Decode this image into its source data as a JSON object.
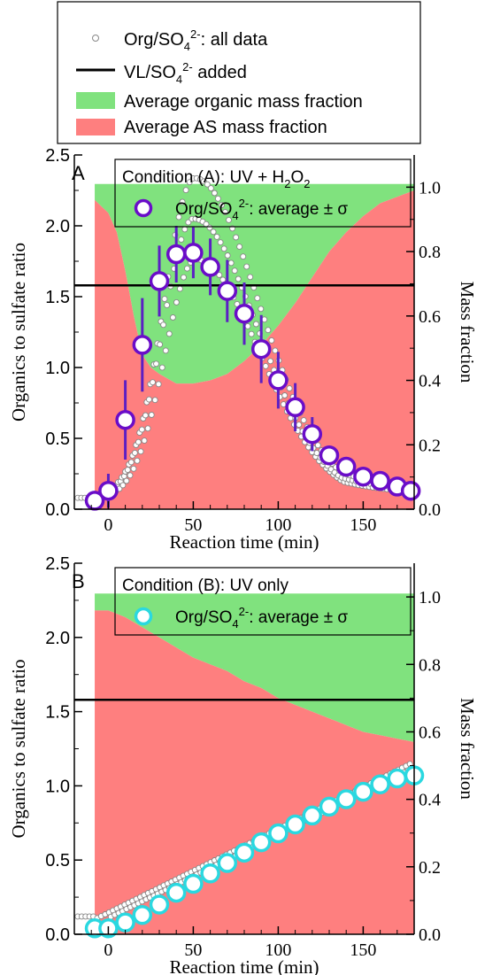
{
  "legend": {
    "all_data_label": "Org/SO",
    "all_data_sub": "4",
    "all_data_sup": "2-",
    "all_data_suffix": ": all data",
    "vl_label": "VL/SO",
    "vl_sub": "4",
    "vl_sup": "2-",
    "vl_suffix": " added",
    "org_frac_label": "Average organic mass fraction",
    "as_frac_label": "Average AS mass fraction"
  },
  "colors": {
    "organic_fill": "#80e27e",
    "as_fill": "#fe7f7f",
    "avg_a_edge": "#6a0dc8",
    "avg_a_err": "#5b1fc4",
    "avg_b_edge": "#2ad8e0",
    "all_data_edge": "#888888",
    "vl_line": "#000000"
  },
  "chart_data": [
    {
      "type": "scatter",
      "panel_letter": "A",
      "condition_text": "Condition (A): UV + H",
      "condition_sub": "2",
      "condition_mid": "O",
      "condition_sub2": "2",
      "avg_label": "Org/SO",
      "avg_sub": "4",
      "avg_sup": "2-",
      "avg_suffix": ": average ± σ",
      "xlabel": "Reaction time (min)",
      "ylabel": "Organics to sulfate ratio",
      "y2label": "Mass fraction",
      "xlim": [
        -20,
        180
      ],
      "ylim": [
        0,
        2.5
      ],
      "y2lim": [
        0,
        1.1
      ],
      "xticks": [
        "0",
        "50",
        "100",
        "150"
      ],
      "xtick_values": [
        0,
        50,
        100,
        150
      ],
      "yticks": [
        "0.0",
        "0.5",
        "1.0",
        "1.5",
        "2.0",
        "2.5"
      ],
      "ytick_values": [
        0,
        0.5,
        1.0,
        1.5,
        2.0,
        2.5
      ],
      "y2ticks": [
        "0.0",
        "0.2",
        "0.4",
        "0.6",
        "0.8",
        "1.0"
      ],
      "y2tick_values": [
        0,
        0.2,
        0.4,
        0.6,
        0.8,
        1.0
      ],
      "vl_ratio": 1.58,
      "fraction_x": [
        -8,
        0,
        5,
        10,
        15,
        20,
        25,
        30,
        40,
        50,
        60,
        70,
        80,
        90,
        100,
        110,
        120,
        130,
        140,
        150,
        160,
        170,
        180
      ],
      "as_fraction": [
        0.96,
        0.92,
        0.86,
        0.74,
        0.6,
        0.48,
        0.44,
        0.42,
        0.39,
        0.39,
        0.4,
        0.42,
        0.46,
        0.51,
        0.57,
        0.64,
        0.72,
        0.8,
        0.86,
        0.91,
        0.95,
        0.97,
        0.99
      ],
      "fraction_top": 1.01,
      "average": {
        "x": [
          -8,
          0,
          10,
          20,
          30,
          40,
          50,
          60,
          70,
          80,
          90,
          100,
          110,
          120,
          130,
          140,
          150,
          160,
          170,
          178
        ],
        "y": [
          0.06,
          0.13,
          0.63,
          1.16,
          1.61,
          1.8,
          1.81,
          1.71,
          1.54,
          1.38,
          1.13,
          0.91,
          0.72,
          0.53,
          0.38,
          0.3,
          0.23,
          0.2,
          0.16,
          0.13
        ],
        "err": [
          0.02,
          0.12,
          0.28,
          0.33,
          0.25,
          0.2,
          0.18,
          0.2,
          0.22,
          0.22,
          0.24,
          0.2,
          0.17,
          0.12,
          0.06,
          0.04,
          0.03,
          0.02,
          0.02,
          0.02
        ]
      },
      "all_data_model": {
        "peak_x": 50,
        "peak_y": 2.05,
        "width_left": 18,
        "width_right": 38,
        "onset": -8,
        "spread": 0.14
      }
    },
    {
      "type": "scatter",
      "panel_letter": "B",
      "condition_text": "Condition (B): UV only",
      "avg_label": "Org/SO",
      "avg_sub": "4",
      "avg_sup": "2-",
      "avg_suffix": ": average ± σ",
      "xlabel": "Reaction time (min)",
      "ylabel": "Organics to sulfate ratio",
      "y2label": "Mass fraction",
      "xlim": [
        -20,
        180
      ],
      "ylim": [
        0,
        2.5
      ],
      "y2lim": [
        0,
        1.1
      ],
      "xticks": [
        "0",
        "50",
        "100",
        "150"
      ],
      "xtick_values": [
        0,
        50,
        100,
        150
      ],
      "yticks": [
        "0.0",
        "0.5",
        "1.0",
        "1.5",
        "2.0",
        "2.5"
      ],
      "ytick_values": [
        0,
        0.5,
        1.0,
        1.5,
        2.0,
        2.5
      ],
      "y2ticks": [
        "0.0",
        "0.2",
        "0.4",
        "0.6",
        "0.8",
        "1.0"
      ],
      "y2tick_values": [
        0,
        0.2,
        0.4,
        0.6,
        0.8,
        1.0
      ],
      "vl_ratio": 1.58,
      "fraction_x": [
        -8,
        0,
        10,
        20,
        30,
        40,
        50,
        60,
        70,
        80,
        90,
        100,
        110,
        120,
        130,
        140,
        150,
        160,
        170,
        180
      ],
      "as_fraction": [
        0.96,
        0.96,
        0.94,
        0.91,
        0.88,
        0.85,
        0.82,
        0.8,
        0.78,
        0.75,
        0.73,
        0.7,
        0.68,
        0.66,
        0.64,
        0.62,
        0.6,
        0.59,
        0.58,
        0.57
      ],
      "fraction_top": 1.01,
      "average": {
        "x": [
          -8,
          0,
          10,
          20,
          30,
          40,
          50,
          60,
          70,
          80,
          90,
          100,
          110,
          120,
          130,
          140,
          150,
          160,
          170,
          180
        ],
        "y": [
          0.04,
          0.04,
          0.08,
          0.13,
          0.2,
          0.28,
          0.34,
          0.41,
          0.48,
          0.55,
          0.62,
          0.68,
          0.74,
          0.8,
          0.86,
          0.91,
          0.96,
          1.01,
          1.05,
          1.07
        ],
        "err": [
          0.01,
          0.01,
          0.01,
          0.01,
          0.01,
          0.01,
          0.01,
          0.01,
          0.01,
          0.01,
          0.01,
          0.01,
          0.01,
          0.01,
          0.01,
          0.01,
          0.01,
          0.01,
          0.01,
          0.01
        ]
      },
      "all_data_model": {
        "start": 0.05,
        "end": 1.1,
        "onset": -8,
        "spread": 0.05
      }
    }
  ]
}
